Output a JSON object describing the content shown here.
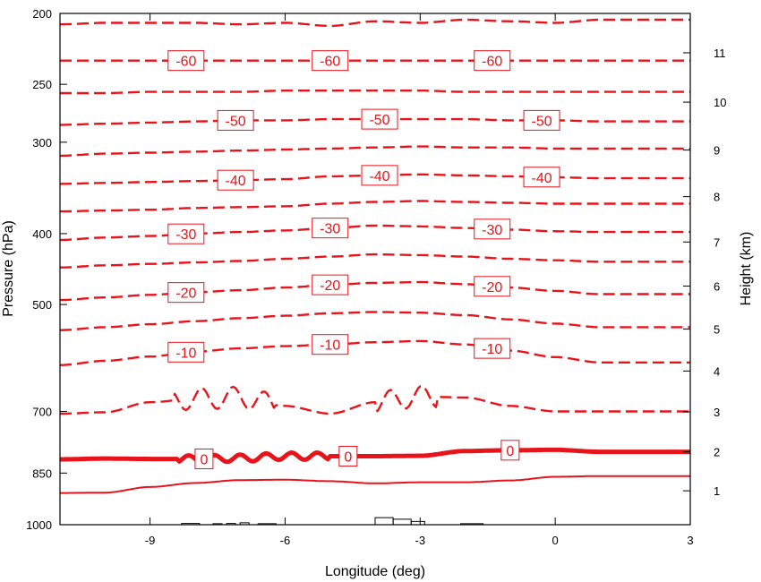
{
  "chart_data": {
    "type": "contour",
    "title": "",
    "xlabel": "Longitude (deg)",
    "ylabel_left": "Pressure (hPa)",
    "ylabel_right": "Height (km)",
    "xlim": [
      -11,
      3
    ],
    "xticks": [
      -9,
      -6,
      -3,
      0,
      3
    ],
    "xtick_labels": [
      "-9",
      "-6",
      "-3",
      "0",
      "3"
    ],
    "pressure_range": [
      200,
      1000
    ],
    "pressure_ticks": [
      200,
      250,
      300,
      400,
      500,
      700,
      850,
      1000
    ],
    "pressure_tick_labels": [
      "200",
      "250",
      "300",
      "400",
      "500",
      "700",
      "850",
      "1000"
    ],
    "height_ticks": [
      1,
      2,
      3,
      4,
      5,
      6,
      7,
      8,
      9,
      10,
      11
    ],
    "height_tick_labels": [
      "1",
      "2",
      "3",
      "4",
      "5",
      "6",
      "7",
      "8",
      "9",
      "10",
      "11"
    ],
    "contour_color": "#e8141b",
    "terrain_color": "#000000",
    "contour_interval": 5,
    "contours": [
      {
        "level": -65,
        "style": "dashed",
        "label": null,
        "pressure": [
          207,
          206,
          206,
          206,
          207,
          206,
          208,
          205,
          206,
          204,
          205,
          206,
          204
        ]
      },
      {
        "level": -60,
        "style": "dashed",
        "label": "-60",
        "pressure": [
          232,
          232,
          232,
          232,
          232,
          232,
          232,
          232,
          232,
          232,
          232,
          232,
          232
        ]
      },
      {
        "level": -55,
        "style": "dashed",
        "label": null,
        "pressure": [
          257,
          257,
          256,
          256,
          256,
          255,
          255,
          255,
          255,
          256,
          256,
          256,
          256
        ]
      },
      {
        "level": -50,
        "style": "dashed",
        "label": "-50",
        "pressure": [
          284,
          283,
          282,
          281,
          280,
          280,
          279,
          279,
          279,
          279,
          280,
          280,
          281
        ]
      },
      {
        "level": -45,
        "style": "dashed",
        "label": null,
        "pressure": [
          313,
          311,
          310,
          309,
          308,
          307,
          306,
          305,
          304,
          305,
          305,
          306,
          306
        ]
      },
      {
        "level": -40,
        "style": "dashed",
        "label": "-40",
        "pressure": [
          342,
          341,
          340,
          339,
          338,
          337,
          334,
          333,
          332,
          333,
          334,
          335,
          336
        ]
      },
      {
        "level": -35,
        "style": "dashed",
        "label": null,
        "pressure": [
          373,
          372,
          371,
          369,
          368,
          367,
          364,
          362,
          361,
          362,
          363,
          364,
          364
        ]
      },
      {
        "level": -30,
        "style": "dashed",
        "label": "-30",
        "pressure": [
          408,
          405,
          403,
          400,
          398,
          396,
          393,
          390,
          391,
          393,
          395,
          397,
          398
        ]
      },
      {
        "level": -25,
        "style": "dashed",
        "label": null,
        "pressure": [
          445,
          442,
          440,
          438,
          436,
          433,
          430,
          427,
          428,
          430,
          433,
          435,
          437
        ]
      },
      {
        "level": -20,
        "style": "dashed",
        "label": "-20",
        "pressure": [
          493,
          489,
          485,
          481,
          478,
          474,
          470,
          467,
          466,
          469,
          474,
          479,
          484
        ]
      },
      {
        "level": -15,
        "style": "dashed",
        "label": null,
        "pressure": [
          542,
          537,
          532,
          527,
          522,
          518,
          514,
          512,
          513,
          517,
          524,
          531,
          537
        ]
      },
      {
        "level": -10,
        "style": "dashed",
        "label": "-10",
        "pressure": [
          605,
          597,
          589,
          580,
          574,
          570,
          567,
          563,
          561,
          567,
          578,
          590,
          600
        ]
      },
      {
        "level": -5,
        "style": "dashed",
        "label": null,
        "pressure": [
          705,
          702,
          680,
          673,
          670,
          688,
          705,
          680,
          668,
          670,
          688,
          700,
          700
        ]
      },
      {
        "level": 0,
        "style": "thick",
        "label": "0",
        "pressure": [
          814,
          812,
          813,
          813,
          811,
          806,
          806,
          806,
          805,
          793,
          791,
          790,
          795
        ]
      },
      {
        "level": 5,
        "style": "solid",
        "label": null,
        "pressure": [
          905,
          904,
          888,
          877,
          869,
          868,
          872,
          878,
          875,
          875,
          870,
          860,
          858
        ]
      }
    ],
    "contour_x": [
      -11,
      -10,
      -9,
      -8,
      -7,
      -6,
      -5,
      -4,
      -3,
      -2,
      -1,
      0,
      1
    ]
  }
}
